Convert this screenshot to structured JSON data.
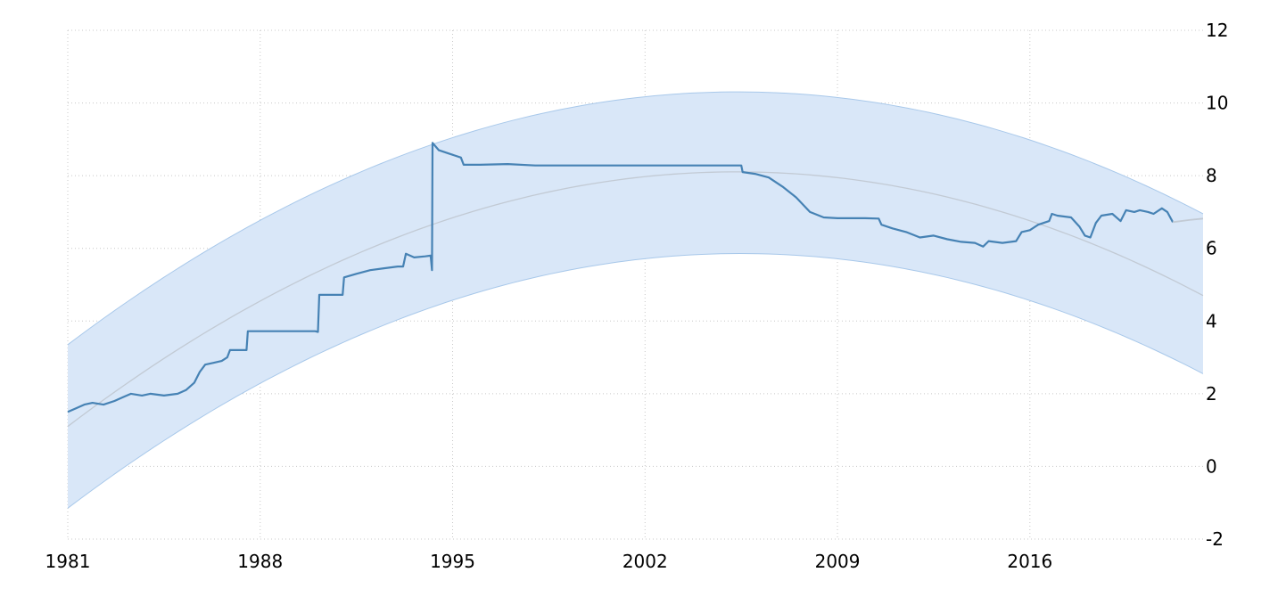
{
  "chart_data": {
    "type": "line",
    "title": "",
    "xlabel": "",
    "ylabel": "",
    "x_ticks": [
      "1981",
      "1988",
      "1995",
      "2002",
      "2009",
      "2016"
    ],
    "y_ticks": [
      "12",
      "10",
      "8",
      "6",
      "4",
      "2",
      "0",
      "-2"
    ],
    "xlim": [
      1981,
      2022.3
    ],
    "ylim": [
      -2,
      12
    ],
    "grid": true,
    "y_axis_side": "right",
    "colors": {
      "series": "#4682b4",
      "band_fill": "#d9e7f8",
      "band_edge": "#a8c8ea",
      "trend": "#c2cad4"
    },
    "series": [
      {
        "values": [
          [
            1981.0,
            1.5
          ],
          [
            1981.3,
            1.6
          ],
          [
            1981.6,
            1.7
          ],
          [
            1981.9,
            1.75
          ],
          [
            1982.3,
            1.7
          ],
          [
            1982.7,
            1.8
          ],
          [
            1983.0,
            1.9
          ],
          [
            1983.3,
            2.0
          ],
          [
            1983.7,
            1.95
          ],
          [
            1984.0,
            2.0
          ],
          [
            1984.5,
            1.95
          ],
          [
            1985.0,
            2.0
          ],
          [
            1985.3,
            2.1
          ],
          [
            1985.6,
            2.3
          ],
          [
            1985.8,
            2.6
          ],
          [
            1986.0,
            2.8
          ],
          [
            1986.3,
            2.85
          ],
          [
            1986.6,
            2.9
          ],
          [
            1986.8,
            3.0
          ],
          [
            1986.9,
            3.2
          ],
          [
            1987.2,
            3.2
          ],
          [
            1987.5,
            3.2
          ],
          [
            1987.55,
            3.72
          ],
          [
            1988.5,
            3.72
          ],
          [
            1989.5,
            3.72
          ],
          [
            1990.0,
            3.72
          ],
          [
            1990.1,
            3.7
          ],
          [
            1990.15,
            4.72
          ],
          [
            1991.0,
            4.72
          ],
          [
            1991.05,
            5.2
          ],
          [
            1991.5,
            5.3
          ],
          [
            1992.0,
            5.4
          ],
          [
            1992.5,
            5.45
          ],
          [
            1993.0,
            5.5
          ],
          [
            1993.2,
            5.5
          ],
          [
            1993.3,
            5.85
          ],
          [
            1993.6,
            5.75
          ],
          [
            1994.0,
            5.78
          ],
          [
            1994.2,
            5.8
          ],
          [
            1994.25,
            5.4
          ],
          [
            1994.27,
            8.9
          ],
          [
            1994.5,
            8.7
          ],
          [
            1994.9,
            8.6
          ],
          [
            1995.3,
            8.5
          ],
          [
            1995.4,
            8.3
          ],
          [
            1996.0,
            8.3
          ],
          [
            1997.0,
            8.32
          ],
          [
            1998.0,
            8.28
          ],
          [
            2001.0,
            8.28
          ],
          [
            2005.0,
            8.28
          ],
          [
            2005.5,
            8.28
          ],
          [
            2005.55,
            8.1
          ],
          [
            2006.0,
            8.05
          ],
          [
            2006.5,
            7.95
          ],
          [
            2007.0,
            7.7
          ],
          [
            2007.5,
            7.4
          ],
          [
            2008.0,
            7.0
          ],
          [
            2008.5,
            6.85
          ],
          [
            2009.0,
            6.83
          ],
          [
            2010.0,
            6.83
          ],
          [
            2010.5,
            6.82
          ],
          [
            2010.6,
            6.65
          ],
          [
            2011.0,
            6.55
          ],
          [
            2011.5,
            6.45
          ],
          [
            2012.0,
            6.3
          ],
          [
            2012.5,
            6.35
          ],
          [
            2013.0,
            6.25
          ],
          [
            2013.5,
            6.18
          ],
          [
            2014.0,
            6.15
          ],
          [
            2014.3,
            6.05
          ],
          [
            2014.5,
            6.2
          ],
          [
            2015.0,
            6.15
          ],
          [
            2015.5,
            6.2
          ],
          [
            2015.7,
            6.45
          ],
          [
            2016.0,
            6.5
          ],
          [
            2016.3,
            6.65
          ],
          [
            2016.7,
            6.75
          ],
          [
            2016.8,
            6.95
          ],
          [
            2017.0,
            6.9
          ],
          [
            2017.5,
            6.85
          ],
          [
            2017.8,
            6.6
          ],
          [
            2018.0,
            6.35
          ],
          [
            2018.2,
            6.3
          ],
          [
            2018.4,
            6.7
          ],
          [
            2018.6,
            6.9
          ],
          [
            2019.0,
            6.95
          ],
          [
            2019.3,
            6.75
          ],
          [
            2019.5,
            7.05
          ],
          [
            2019.8,
            7.0
          ],
          [
            2020.0,
            7.05
          ],
          [
            2020.3,
            7.0
          ],
          [
            2020.5,
            6.95
          ],
          [
            2020.8,
            7.1
          ],
          [
            2021.0,
            7.0
          ],
          [
            2021.2,
            6.72
          ]
        ]
      }
    ],
    "forecast": [
      [
        2021.2,
        6.72
      ],
      [
        2021.8,
        6.78
      ],
      [
        2022.3,
        6.82
      ]
    ],
    "trend": {
      "x": [
        1981,
        2004.7,
        2022.3
      ],
      "y": [
        1.1,
        8.1,
        4.7
      ]
    },
    "band": {
      "upper_y": [
        3.35,
        10.3,
        6.95
      ],
      "lower_y": [
        -1.15,
        5.85,
        2.55
      ]
    }
  }
}
